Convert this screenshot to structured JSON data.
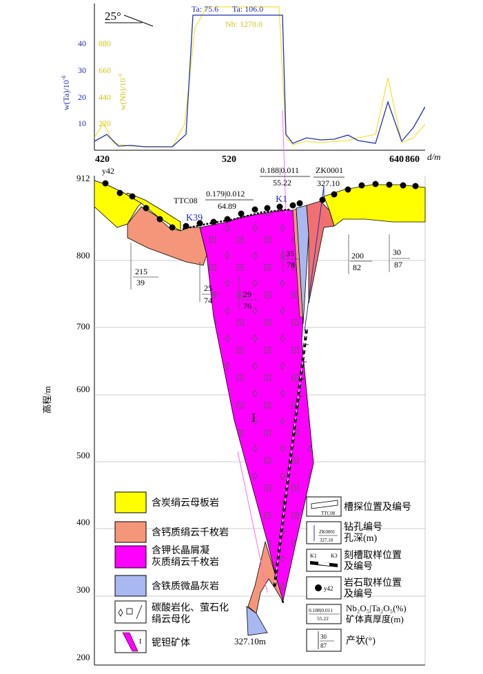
{
  "profile": {
    "angle": "25°",
    "ta_ticks": [
      "40",
      "30",
      "20",
      "10"
    ],
    "nb_ticks": [
      "880",
      "660",
      "440",
      "220"
    ],
    "ylabel_ta": "w(Ta)/10",
    "ylabel_ta_exp": "-6",
    "ylabel_nb": "w(Nb)/10",
    "ylabel_nb_exp": "-6",
    "peak_ta1": "Ta: 75.6",
    "peak_ta2": "Ta: 106.0",
    "peak_nb": "Nb: 1270.0",
    "x_ticks": [
      "420",
      "520",
      "640",
      "860"
    ],
    "x_unit": "d/m",
    "colors": {
      "ta": "#1f2db5",
      "nb": "#f2e43a"
    }
  },
  "section": {
    "elev_label": "高程/m",
    "elev_ticks": [
      "912",
      "800",
      "700",
      "600",
      "500",
      "400",
      "300",
      "200"
    ],
    "labels": {
      "rock_sample": "y42",
      "trench": "TTC08",
      "k39": "K39",
      "k1": "K1",
      "drill": "ZK0001",
      "drill_depth": "327.10",
      "assay1_top": "0.179|0.012",
      "assay1_bot": "64.89",
      "assay2_top": "0.188|0.011",
      "assay2_bot": "55.22",
      "orebody": "I",
      "bottom_depth": "327.10m"
    },
    "attitudes": [
      {
        "a": "215",
        "b": "39"
      },
      {
        "a": "25",
        "b": "74"
      },
      {
        "a": "29",
        "b": "76"
      },
      {
        "a": "35",
        "b": "78"
      },
      {
        "a": "200",
        "b": "82"
      },
      {
        "a": "30",
        "b": "87"
      }
    ],
    "colors": {
      "slate": "#ffff00",
      "phyllite": "#f4967a",
      "tuff": "#ff00ff",
      "limestone": "#a9b8f0",
      "bright_red": "#f07070"
    }
  },
  "legend": {
    "items": [
      {
        "label": "含炭绢云母板岩"
      },
      {
        "label": "含钙质绢云千枚岩"
      },
      {
        "label": "含钾长晶屑凝\n灰质绢云千枚岩"
      },
      {
        "label": "含铁质微晶灰岩"
      },
      {
        "label": "碳酸岩化、萤石化\n绢云母化"
      },
      {
        "label": "铌钽矿体"
      }
    ],
    "symbols": [
      {
        "label": "槽探位置及编号",
        "sample": "TTC08"
      },
      {
        "label": "钻孔编号\n孔深(m)",
        "sample1": "ZK0001",
        "sample2": "327.10"
      },
      {
        "label": "刻槽取样位置\n及编号",
        "sample1": "K1",
        "sample2": "K3"
      },
      {
        "label": "岩石取样位置\n及编号",
        "sample": "y42"
      },
      {
        "label": "Nb₂O₅|Ta₂O₅(%)\n矿体真厚度(m)",
        "sample1": "0.188|0.011",
        "sample2": "55.22"
      },
      {
        "label": "产状(°)",
        "sample1": "30",
        "sample2": "87"
      }
    ],
    "orebody_symbol": "I"
  }
}
